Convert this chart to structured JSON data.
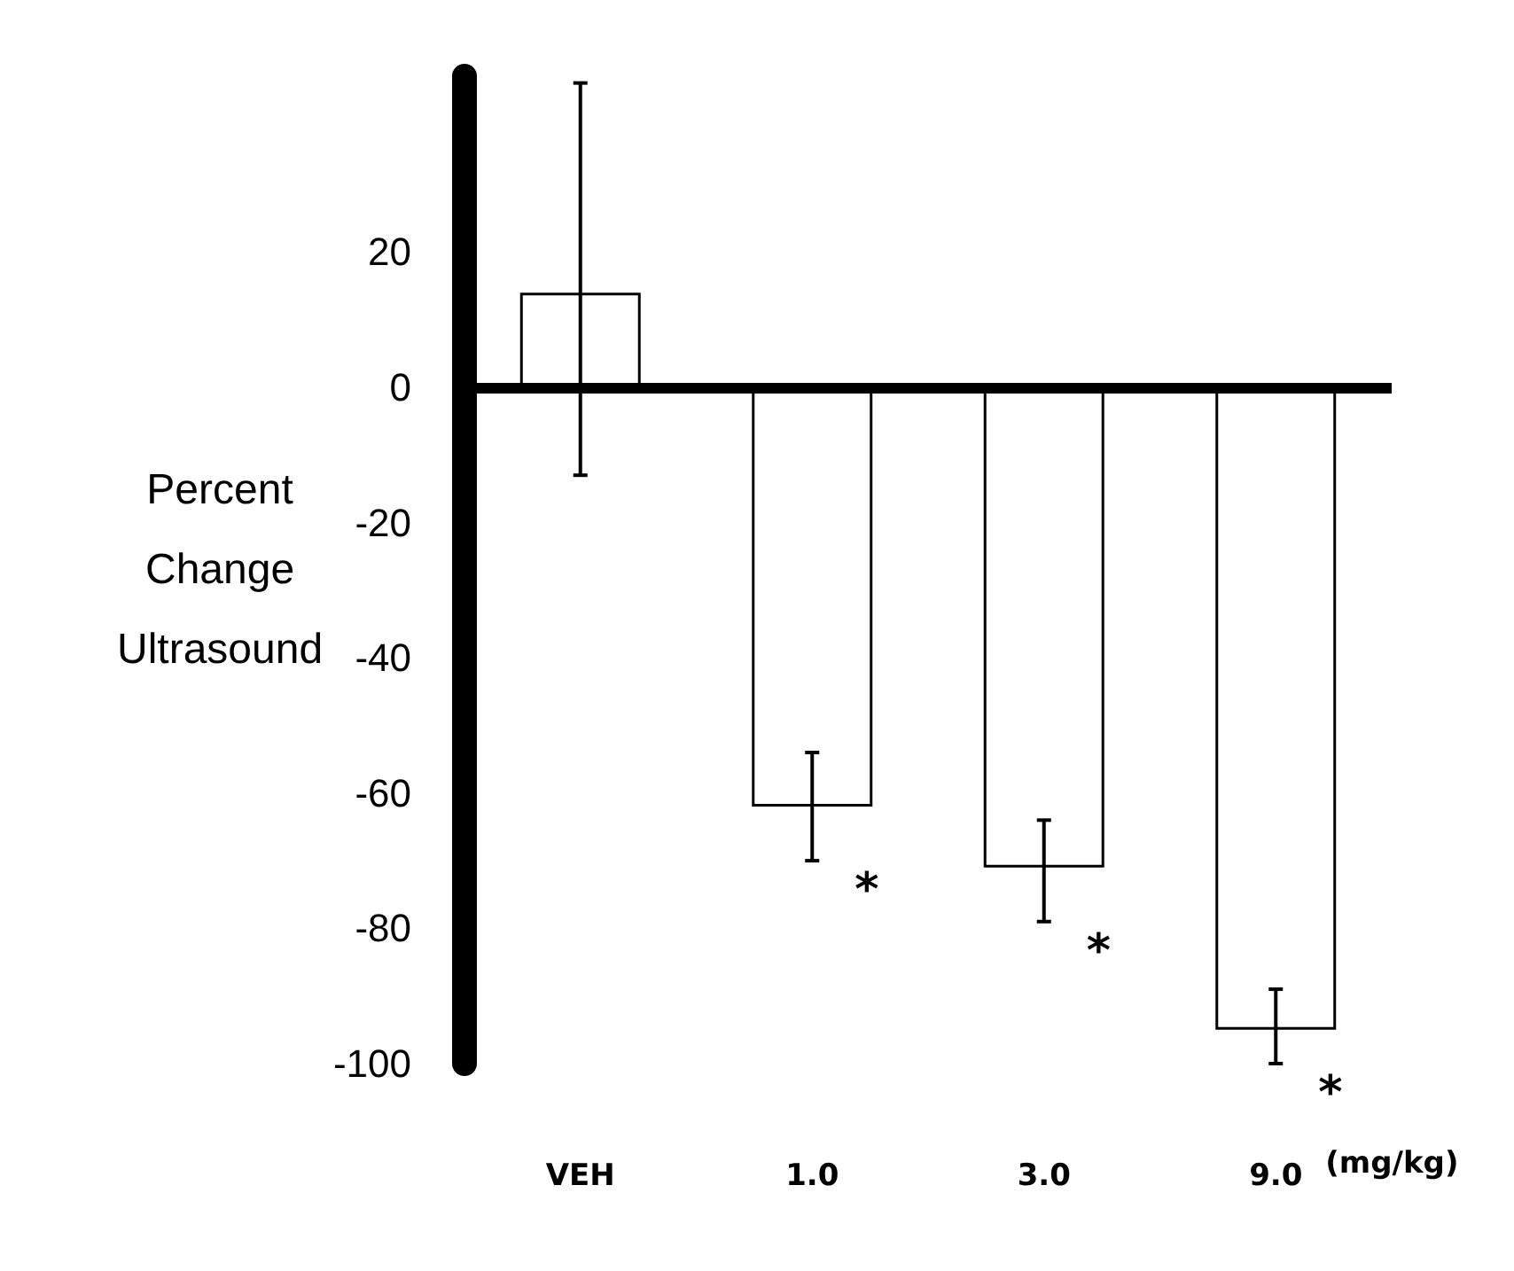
{
  "chart_data": {
    "type": "bar",
    "ylabel": "Percent\nChange\nUltrasound",
    "xlabel": "(mg/kg)",
    "categories": [
      "VEH",
      "1.0",
      "3.0",
      "9.0"
    ],
    "values": [
      14,
      -62,
      -71,
      -95
    ],
    "errors": [
      [
        -13,
        45
      ],
      [
        -70,
        -54
      ],
      [
        -79,
        -64
      ],
      [
        -100,
        -89
      ]
    ],
    "color": "#ffffff",
    "ylim": [
      -100,
      46
    ],
    "yticks": [
      -100,
      -80,
      -60,
      -40,
      -20,
      0,
      20
    ],
    "grid": false,
    "ref_lines": [
      {
        "axis": "y",
        "value": 0,
        "color": "#000000"
      }
    ],
    "annotations": [
      {
        "text": "*",
        "x": "1.0",
        "y": -70
      },
      {
        "text": "*",
        "x": "3.0",
        "y": -79
      },
      {
        "text": "*",
        "x": "9.0",
        "y": -100
      }
    ]
  }
}
